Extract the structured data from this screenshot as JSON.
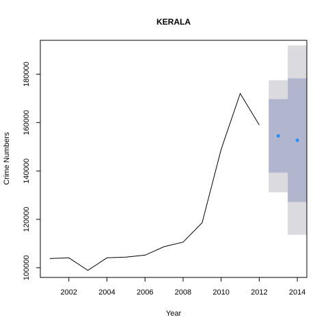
{
  "chart_data": {
    "type": "line",
    "title": "KERALA",
    "xlabel": "Year",
    "ylabel": "Crime Numbers",
    "xlim": [
      2000.5,
      2014.5
    ],
    "ylim": [
      96000,
      194000
    ],
    "x_ticks": [
      2002,
      2004,
      2006,
      2008,
      2010,
      2012,
      2014
    ],
    "y_ticks": [
      100000,
      120000,
      140000,
      160000,
      180000
    ],
    "grid": false,
    "legend": "none",
    "series": [
      {
        "x": [
          2001,
          2002,
          2003,
          2004,
          2005,
          2006,
          2007,
          2008,
          2009,
          2010,
          2011,
          2012
        ],
        "values": [
          103800,
          104100,
          98900,
          104100,
          104400,
          105200,
          108700,
          110600,
          118600,
          148900,
          172000,
          159000
        ],
        "color": "#000000"
      }
    ],
    "forecast": {
      "x": [
        2013,
        2014
      ],
      "mean": [
        154500,
        152700
      ],
      "lo80": [
        139300,
        127200
      ],
      "hi80": [
        169700,
        178300
      ],
      "lo95": [
        131200,
        113600
      ],
      "hi95": [
        177500,
        191900
      ],
      "point_color": "#1e90ff",
      "band80_color": "#b1b5ce",
      "band95_color": "#dbdbdf"
    }
  }
}
